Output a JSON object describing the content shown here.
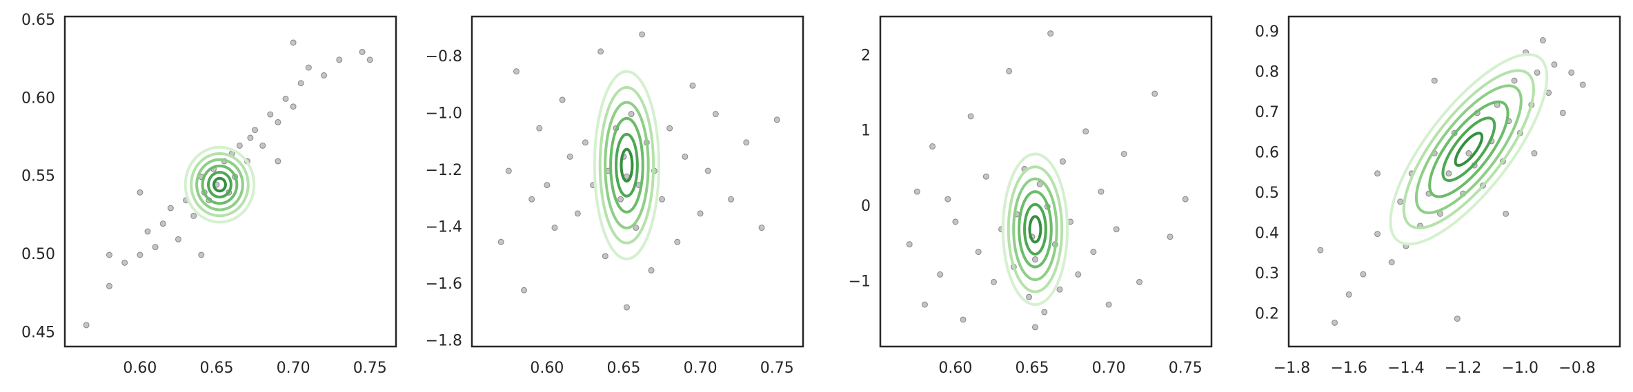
{
  "chart_data": [
    {
      "type": "scatter",
      "color": "#555555",
      "x": [
        0.565,
        0.58,
        0.59,
        0.6,
        0.605,
        0.61,
        0.615,
        0.62,
        0.625,
        0.63,
        0.635,
        0.64,
        0.642,
        0.645,
        0.648,
        0.65,
        0.655,
        0.658,
        0.66,
        0.662,
        0.665,
        0.67,
        0.672,
        0.675,
        0.68,
        0.685,
        0.69,
        0.695,
        0.7,
        0.705,
        0.71,
        0.72,
        0.73,
        0.745,
        0.75,
        0.7,
        0.6,
        0.69,
        0.64,
        0.58
      ],
      "y": [
        0.455,
        0.48,
        0.495,
        0.5,
        0.515,
        0.505,
        0.52,
        0.53,
        0.51,
        0.535,
        0.525,
        0.55,
        0.54,
        0.535,
        0.555,
        0.545,
        0.56,
        0.54,
        0.565,
        0.55,
        0.57,
        0.56,
        0.575,
        0.58,
        0.57,
        0.59,
        0.585,
        0.6,
        0.595,
        0.61,
        0.62,
        0.615,
        0.625,
        0.63,
        0.625,
        0.636,
        0.54,
        0.56,
        0.5,
        0.5
      ],
      "xlim": [
        0.551,
        0.767
      ],
      "ylim": [
        0.4413,
        0.6527
      ],
      "xticks": [
        {
          "value": 0.6,
          "label": "0.60"
        },
        0.65,
        {
          "value": 0.7,
          "label": "0.70"
        },
        0.75
      ],
      "yticks": [
        0.45,
        {
          "value": 0.5,
          "label": "0.50"
        },
        0.55,
        {
          "value": 0.6,
          "label": "0.60"
        },
        0.65
      ],
      "contours": {
        "center": [
          0.652,
          0.545
        ],
        "major": [
          0,
          0.024
        ],
        "minor": [
          0.0224,
          0
        ],
        "scales": [
          1,
          0.83,
          0.67,
          0.5,
          0.33,
          0.17
        ],
        "colors": [
          "#d5f0cf",
          "#b5e2ab",
          "#8fcf87",
          "#6cbd6a",
          "#4ea853",
          "#358f3f"
        ]
      }
    },
    {
      "type": "scatter",
      "color": "#555555",
      "x": [
        0.57,
        0.575,
        0.58,
        0.585,
        0.59,
        0.595,
        0.6,
        0.605,
        0.61,
        0.615,
        0.62,
        0.625,
        0.63,
        0.635,
        0.638,
        0.64,
        0.645,
        0.648,
        0.65,
        0.652,
        0.655,
        0.658,
        0.66,
        0.662,
        0.665,
        0.668,
        0.67,
        0.675,
        0.68,
        0.685,
        0.69,
        0.695,
        0.7,
        0.705,
        0.71,
        0.72,
        0.73,
        0.74,
        0.75,
        0.652
      ],
      "y": [
        -1.45,
        -1.2,
        -0.85,
        -1.62,
        -1.3,
        -1.05,
        -1.25,
        -1.4,
        -0.95,
        -1.15,
        -1.35,
        -1.1,
        -1.25,
        -0.78,
        -1.5,
        -1.2,
        -1.05,
        -1.3,
        -1.15,
        -1.22,
        -1.0,
        -1.4,
        -1.25,
        -0.72,
        -1.1,
        -1.55,
        -1.2,
        -1.3,
        -1.05,
        -1.45,
        -1.15,
        -0.9,
        -1.35,
        -1.2,
        -1.0,
        -1.3,
        -1.1,
        -1.4,
        -1.02,
        -1.68
      ],
      "xlim": [
        0.551,
        0.767
      ],
      "ylim": [
        -1.818,
        -0.657
      ],
      "xticks": [
        {
          "value": 0.6,
          "label": "0.60"
        },
        0.65,
        {
          "value": 0.7,
          "label": "0.70"
        },
        0.75
      ],
      "yticks": [
        {
          "value": -1.8,
          "label": "−1.8"
        },
        {
          "value": -1.6,
          "label": "−1.6"
        },
        {
          "value": -1.4,
          "label": "−1.4"
        },
        {
          "value": -1.2,
          "label": "−1.2"
        },
        {
          "value": -1.0,
          "label": "−1.0"
        },
        {
          "value": -0.8,
          "label": "−0.8"
        }
      ],
      "contours": {
        "center": [
          0.652,
          -1.18
        ],
        "major": [
          0,
          0.33
        ],
        "minor": [
          0.021,
          0
        ],
        "scales": [
          1,
          0.83,
          0.67,
          0.5,
          0.33,
          0.17
        ],
        "colors": [
          "#d5f0cf",
          "#b5e2ab",
          "#8fcf87",
          "#6cbd6a",
          "#4ea853",
          "#358f3f"
        ]
      }
    },
    {
      "type": "scatter",
      "color": "#555555",
      "x": [
        0.57,
        0.575,
        0.58,
        0.585,
        0.59,
        0.595,
        0.6,
        0.605,
        0.61,
        0.615,
        0.62,
        0.625,
        0.63,
        0.635,
        0.638,
        0.64,
        0.645,
        0.648,
        0.65,
        0.652,
        0.655,
        0.658,
        0.66,
        0.662,
        0.665,
        0.668,
        0.67,
        0.675,
        0.68,
        0.685,
        0.69,
        0.695,
        0.7,
        0.705,
        0.71,
        0.72,
        0.73,
        0.74,
        0.75,
        0.652
      ],
      "y": [
        -0.5,
        0.2,
        -1.3,
        0.8,
        -0.9,
        0.1,
        -0.2,
        -1.5,
        1.2,
        -0.6,
        0.4,
        -1.0,
        -0.3,
        1.8,
        -0.8,
        -0.1,
        0.5,
        -1.2,
        -0.4,
        -0.7,
        0.3,
        -1.4,
        0.0,
        2.3,
        -0.5,
        -1.1,
        0.6,
        -0.2,
        -0.9,
        1.0,
        -0.6,
        0.2,
        -1.3,
        -0.3,
        0.7,
        -1.0,
        1.5,
        -0.4,
        0.1,
        -1.6
      ],
      "xlim": [
        0.551,
        0.767
      ],
      "ylim": [
        -1.857,
        2.525
      ],
      "xticks": [
        {
          "value": 0.6,
          "label": "0.60"
        },
        0.65,
        {
          "value": 0.7,
          "label": "0.70"
        },
        0.75
      ],
      "yticks": [
        {
          "value": -1,
          "label": "−1"
        },
        0,
        1,
        2
      ],
      "contours": {
        "center": [
          0.652,
          -0.3
        ],
        "major": [
          0,
          1.0
        ],
        "minor": [
          0.021,
          0
        ],
        "scales": [
          1,
          0.83,
          0.67,
          0.5,
          0.33,
          0.17
        ],
        "colors": [
          "#d5f0cf",
          "#b5e2ab",
          "#8fcf87",
          "#6cbd6a",
          "#4ea853",
          "#358f3f"
        ]
      }
    },
    {
      "type": "scatter",
      "color": "#555555",
      "x": [
        -1.65,
        -1.6,
        -1.55,
        -1.5,
        -1.45,
        -1.42,
        -1.4,
        -1.38,
        -1.35,
        -1.32,
        -1.3,
        -1.28,
        -1.25,
        -1.23,
        -1.2,
        -1.18,
        -1.16,
        -1.15,
        -1.13,
        -1.1,
        -1.08,
        -1.06,
        -1.04,
        -1.02,
        -1.0,
        -0.98,
        -0.96,
        -0.94,
        -0.92,
        -0.9,
        -0.88,
        -0.85,
        -0.82,
        -0.78,
        -1.7,
        -1.22,
        -1.5,
        -1.05,
        -1.3,
        -0.95
      ],
      "y": [
        0.18,
        0.25,
        0.3,
        0.4,
        0.33,
        0.48,
        0.37,
        0.55,
        0.42,
        0.5,
        0.6,
        0.45,
        0.55,
        0.65,
        0.5,
        0.6,
        0.57,
        0.7,
        0.52,
        0.63,
        0.72,
        0.58,
        0.68,
        0.78,
        0.65,
        0.85,
        0.72,
        0.8,
        0.88,
        0.75,
        0.82,
        0.7,
        0.8,
        0.77,
        0.36,
        0.19,
        0.55,
        0.45,
        0.78,
        0.6
      ],
      "xlim": [
        -1.811,
        -0.65
      ],
      "ylim": [
        0.121,
        0.939
      ],
      "xticks": [
        {
          "value": -1.8,
          "label": "−1.8"
        },
        {
          "value": -1.6,
          "label": "−1.6"
        },
        {
          "value": -1.4,
          "label": "−1.4"
        },
        {
          "value": -1.2,
          "label": "−1.2"
        },
        {
          "value": -1.0,
          "label": "−1.0"
        },
        {
          "value": -0.8,
          "label": "−0.8"
        }
      ],
      "yticks": [
        0.2,
        0.3,
        0.4,
        0.5,
        0.6,
        0.7,
        0.8,
        0.9
      ],
      "contours": {
        "center": [
          -1.18,
          0.61
        ],
        "major": [
          0.25,
          0.226
        ],
        "minor": [
          -0.113,
          0.065
        ],
        "scales": [
          1,
          0.83,
          0.67,
          0.5,
          0.33,
          0.17
        ],
        "colors": [
          "#d5f0cf",
          "#b5e2ab",
          "#8fcf87",
          "#6cbd6a",
          "#4ea853",
          "#358f3f"
        ]
      }
    }
  ]
}
